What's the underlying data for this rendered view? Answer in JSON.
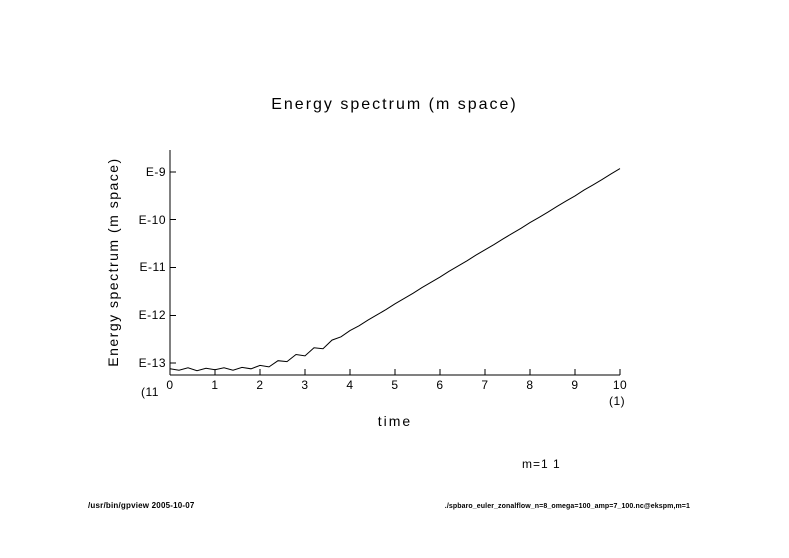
{
  "colors": {
    "background": "#ffffff",
    "line": "#000000",
    "axis": "#000000",
    "text": "#000000"
  },
  "notes": {
    "left": "(11",
    "right": "(1)"
  },
  "footer": {
    "left": "/usr/bin/gpview  2005-10-07",
    "right": "./spbaro_euler_zonalflow_n=8_omega=100_amp=7_100.nc@ekspm,m=1"
  },
  "chart_data": {
    "type": "line",
    "title": "Energy spectrum (m space)",
    "xlabel": "time",
    "ylabel": "Energy spectrum (m space)",
    "y_scale": "log10",
    "grid": false,
    "legend_position": "below-right",
    "xlim": [
      0,
      10
    ],
    "ylim_log10": [
      -13.25,
      -8.54
    ],
    "x_ticks": [
      "0",
      "1",
      "2",
      "3",
      "4",
      "5",
      "6",
      "7",
      "8",
      "9",
      "10"
    ],
    "x_tick_values": [
      0,
      1,
      2,
      3,
      4,
      5,
      6,
      7,
      8,
      9,
      10
    ],
    "y_ticks": [
      "E-9",
      "E-10",
      "E-11",
      "E-12",
      "E-13"
    ],
    "y_tick_log10": [
      -9,
      -10,
      -11,
      -12,
      -13
    ],
    "series": [
      {
        "name": "m=1 1",
        "x": [
          0.0,
          0.2,
          0.4,
          0.6,
          0.8,
          1.0,
          1.2,
          1.4,
          1.6,
          1.8,
          2.0,
          2.2,
          2.4,
          2.6,
          2.8,
          3.0,
          3.2,
          3.4,
          3.6,
          3.8,
          4.0,
          4.2,
          4.4,
          4.6,
          4.8,
          5.0,
          5.2,
          5.4,
          5.6,
          5.8,
          6.0,
          6.2,
          6.4,
          6.6,
          6.8,
          7.0,
          7.2,
          7.4,
          7.6,
          7.8,
          8.0,
          8.2,
          8.4,
          8.6,
          8.8,
          9.0,
          9.2,
          9.4,
          9.6,
          9.8,
          10.0
        ],
        "log10_y": [
          -13.12,
          -13.15,
          -13.1,
          -13.16,
          -13.11,
          -13.14,
          -13.1,
          -13.15,
          -13.09,
          -13.12,
          -13.05,
          -13.08,
          -12.95,
          -12.97,
          -12.82,
          -12.85,
          -12.68,
          -12.7,
          -12.52,
          -12.45,
          -12.32,
          -12.22,
          -12.1,
          -11.99,
          -11.88,
          -11.76,
          -11.65,
          -11.54,
          -11.42,
          -11.31,
          -11.2,
          -11.08,
          -10.97,
          -10.86,
          -10.74,
          -10.63,
          -10.52,
          -10.4,
          -10.29,
          -10.18,
          -10.06,
          -9.95,
          -9.84,
          -9.72,
          -9.61,
          -9.5,
          -9.38,
          -9.27,
          -9.16,
          -9.04,
          -8.93
        ]
      }
    ]
  }
}
